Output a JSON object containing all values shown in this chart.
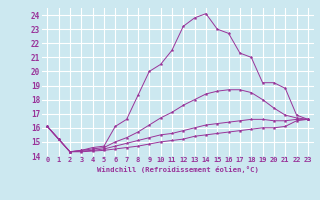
{
  "background_color": "#cce8f0",
  "grid_color": "#ffffff",
  "line_color": "#993399",
  "marker_color": "#993399",
  "xlabel": "Windchill (Refroidissement éolien,°C)",
  "xlim": [
    -0.5,
    23.5
  ],
  "ylim": [
    14,
    24.5
  ],
  "yticks": [
    14,
    15,
    16,
    17,
    18,
    19,
    20,
    21,
    22,
    23,
    24
  ],
  "xticks": [
    0,
    1,
    2,
    3,
    4,
    5,
    6,
    7,
    8,
    9,
    10,
    11,
    12,
    13,
    14,
    15,
    16,
    17,
    18,
    19,
    20,
    21,
    22,
    23
  ],
  "series": [
    [
      16.1,
      15.2,
      14.3,
      14.4,
      14.6,
      14.7,
      16.1,
      16.6,
      18.3,
      20.0,
      20.5,
      21.5,
      23.2,
      23.8,
      24.1,
      23.0,
      22.7,
      21.3,
      21.0,
      19.2,
      19.2,
      18.8,
      16.9,
      16.6
    ],
    [
      16.1,
      15.2,
      14.3,
      14.4,
      14.5,
      14.6,
      15.0,
      15.3,
      15.7,
      16.2,
      16.7,
      17.1,
      17.6,
      18.0,
      18.4,
      18.6,
      18.7,
      18.7,
      18.5,
      18.0,
      17.4,
      16.9,
      16.7,
      16.6
    ],
    [
      16.1,
      15.2,
      14.3,
      14.35,
      14.4,
      14.5,
      14.7,
      14.9,
      15.1,
      15.3,
      15.5,
      15.6,
      15.8,
      16.0,
      16.2,
      16.3,
      16.4,
      16.5,
      16.6,
      16.6,
      16.5,
      16.5,
      16.6,
      16.6
    ],
    [
      16.1,
      15.2,
      14.3,
      14.3,
      14.35,
      14.4,
      14.5,
      14.6,
      14.7,
      14.85,
      15.0,
      15.1,
      15.2,
      15.4,
      15.5,
      15.6,
      15.7,
      15.8,
      15.9,
      16.0,
      16.0,
      16.1,
      16.5,
      16.6
    ]
  ]
}
